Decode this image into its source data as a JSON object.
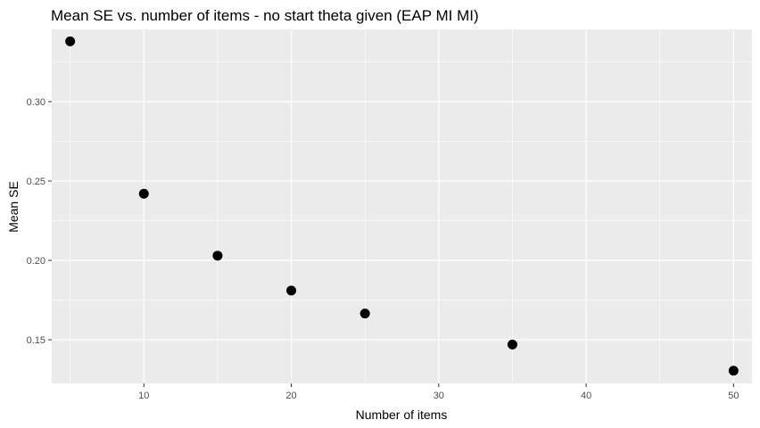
{
  "chart_data": {
    "type": "scatter",
    "title": "Mean SE vs. number of items - no start theta given (EAP MI MI)",
    "xlabel": "Number of items",
    "ylabel": "Mean SE",
    "x": [
      5,
      10,
      15,
      20,
      25,
      35,
      50
    ],
    "y": [
      0.338,
      0.242,
      0.203,
      0.181,
      0.1665,
      0.147,
      0.1305
    ],
    "xlim": [
      3.75,
      51.25
    ],
    "ylim": [
      0.1225,
      0.3455
    ],
    "xticks": [
      10,
      20,
      30,
      40,
      50
    ],
    "xtick_labels": [
      "10",
      "20",
      "30",
      "40",
      "50"
    ],
    "yticks": [
      0.15,
      0.2,
      0.25,
      0.3
    ],
    "ytick_labels": [
      "0.15",
      "0.20",
      "0.25",
      "0.30"
    ],
    "grid": true,
    "panel_color": "#ebebeb",
    "grid_color": "#ffffff",
    "point_color": "#000000"
  }
}
